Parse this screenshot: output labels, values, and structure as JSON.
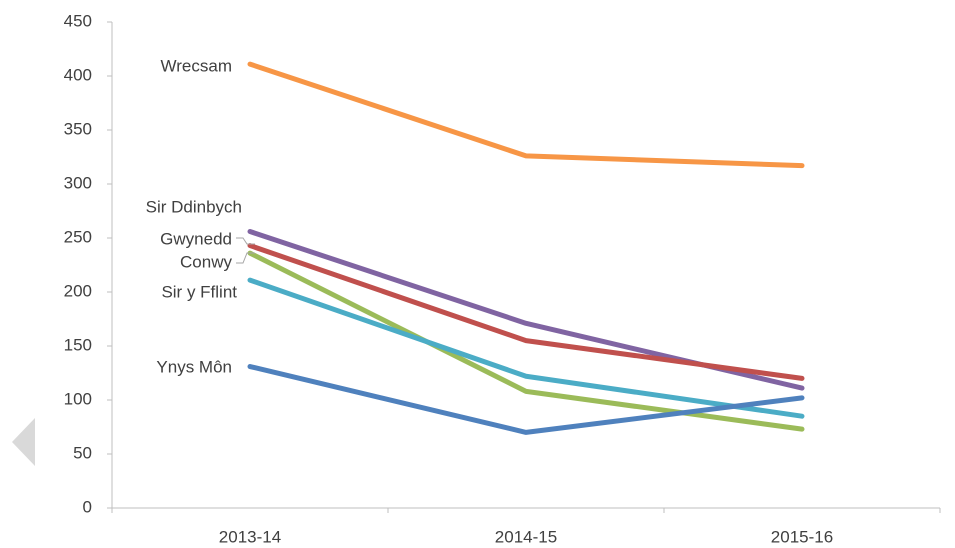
{
  "chart_data": {
    "type": "line",
    "categories": [
      "2013-14",
      "2014-15",
      "2015-16"
    ],
    "series": [
      {
        "name": "Wrecsam",
        "color": "#f79646",
        "values": [
          411,
          326,
          317
        ]
      },
      {
        "name": "Sir Ddinbych",
        "color": "#8064a2",
        "values": [
          256,
          171,
          111
        ]
      },
      {
        "name": "Gwynedd",
        "color": "#c0504d",
        "values": [
          243,
          155,
          120
        ]
      },
      {
        "name": "Conwy",
        "color": "#9bbb59",
        "values": [
          236,
          108,
          73
        ]
      },
      {
        "name": "Sir y Fflint",
        "color": "#4bacc6",
        "values": [
          211,
          122,
          85
        ]
      },
      {
        "name": "Ynys Môn",
        "color": "#4f81bd",
        "values": [
          131,
          70,
          102
        ]
      }
    ],
    "ylim": [
      0,
      450
    ],
    "yticks": [
      0,
      50,
      100,
      150,
      200,
      250,
      300,
      350,
      400,
      450
    ],
    "grid": false
  }
}
